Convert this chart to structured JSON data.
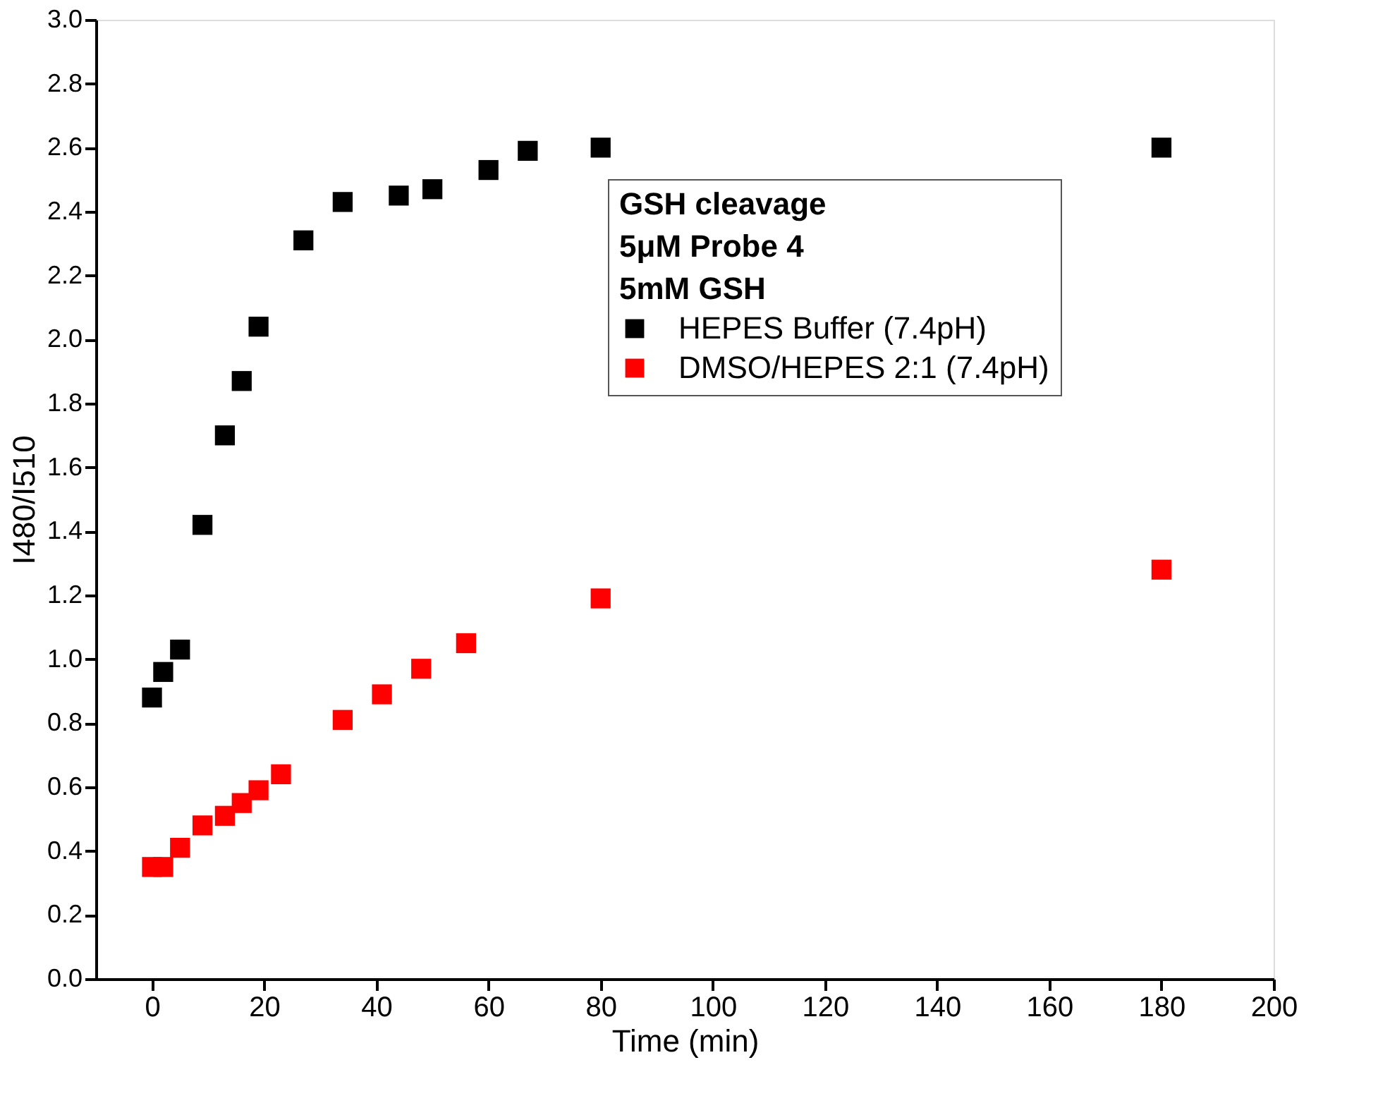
{
  "chart_data": {
    "type": "scatter",
    "xlabel": "Time (min)",
    "ylabel": "I480/I510",
    "legend_title": "GSH cleavage",
    "annotations": [
      "5μM Probe 4",
      "5mM GSH"
    ],
    "marker": "square",
    "legend": "top right",
    "grid": false,
    "xlim": [
      -10,
      200
    ],
    "xticks": [
      0,
      20,
      40,
      60,
      80,
      100,
      120,
      140,
      160,
      180,
      200
    ],
    "ylim": [
      0,
      3.0
    ],
    "yticks": [
      {
        "value": 0,
        "label": "0.0"
      },
      0.2,
      0.4,
      0.6,
      0.8,
      {
        "value": 1,
        "label": "1.0"
      },
      1.2,
      1.4,
      1.6,
      1.8,
      {
        "value": 2,
        "label": "2.0"
      },
      2.2,
      2.4,
      2.6,
      2.8,
      {
        "value": 3,
        "label": "3.0"
      }
    ],
    "series": [
      {
        "name": "HEPES Buffer (7.4pH)",
        "color": "#000000",
        "x": [
          0,
          2,
          5,
          9,
          13,
          16,
          19,
          27,
          34,
          44,
          50,
          60,
          67,
          80,
          180
        ],
        "values": [
          0.88,
          0.96,
          1.03,
          1.42,
          1.7,
          1.87,
          2.04,
          2.31,
          2.43,
          2.45,
          2.47,
          2.53,
          2.59,
          2.6,
          2.6
        ]
      },
      {
        "name": "DMSO/HEPES 2:1 (7.4pH)",
        "color": "#ff0000",
        "x": [
          0,
          2,
          5,
          9,
          13,
          16,
          19,
          23,
          34,
          41,
          48,
          56,
          80,
          180
        ],
        "values": [
          0.35,
          0.35,
          0.41,
          0.48,
          0.51,
          0.55,
          0.59,
          0.64,
          0.81,
          0.89,
          0.97,
          1.05,
          1.19,
          1.28
        ]
      }
    ]
  }
}
